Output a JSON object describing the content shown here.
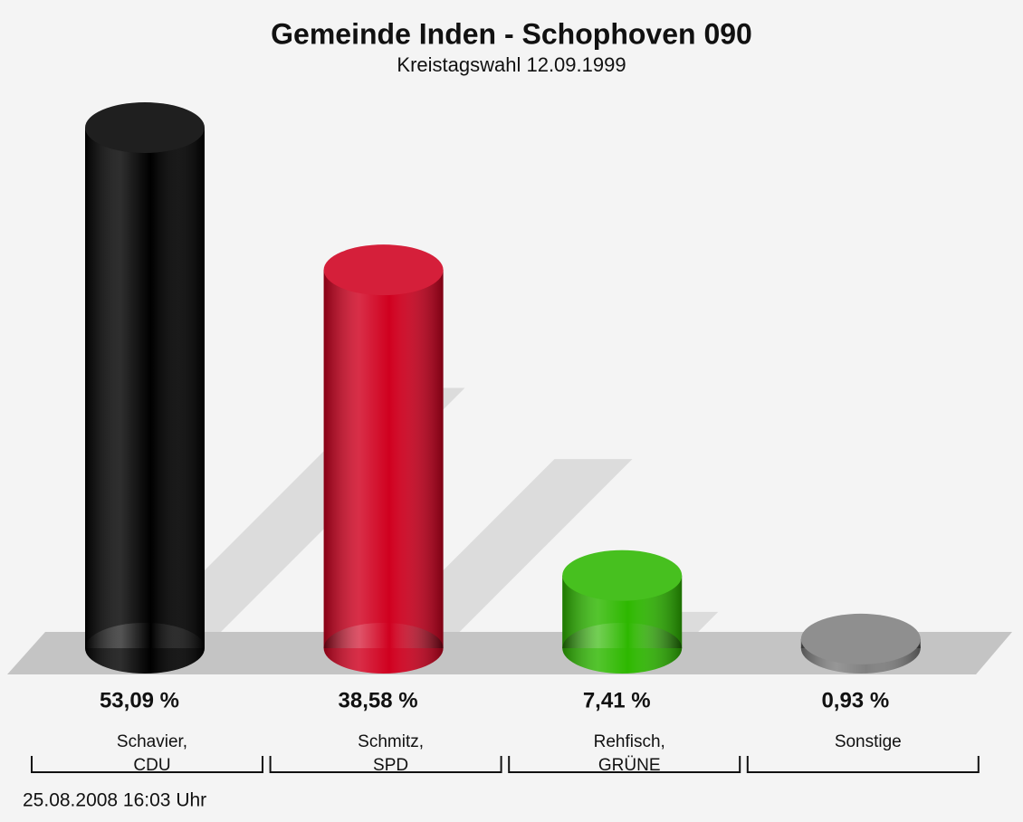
{
  "chart_data": {
    "type": "bar",
    "title": "Gemeinde Inden - Schophoven 090",
    "subtitle": "Kreistagswahl 12.09.1999",
    "categories": [
      [
        "Schavier,",
        "CDU"
      ],
      [
        "Schmitz,",
        "SPD"
      ],
      [
        "Rehfisch,",
        "GRÜNE"
      ],
      [
        "Sonstige"
      ]
    ],
    "values": [
      53.09,
      38.58,
      7.41,
      0.93
    ],
    "value_labels": [
      "53,09 %",
      "38,58 %",
      "7,41 %",
      "0,93 %"
    ],
    "colors": [
      "#000000",
      "#d0001f",
      "#2eb800",
      "#808080"
    ],
    "footer": "25.08.2008 16:03 Uhr"
  }
}
